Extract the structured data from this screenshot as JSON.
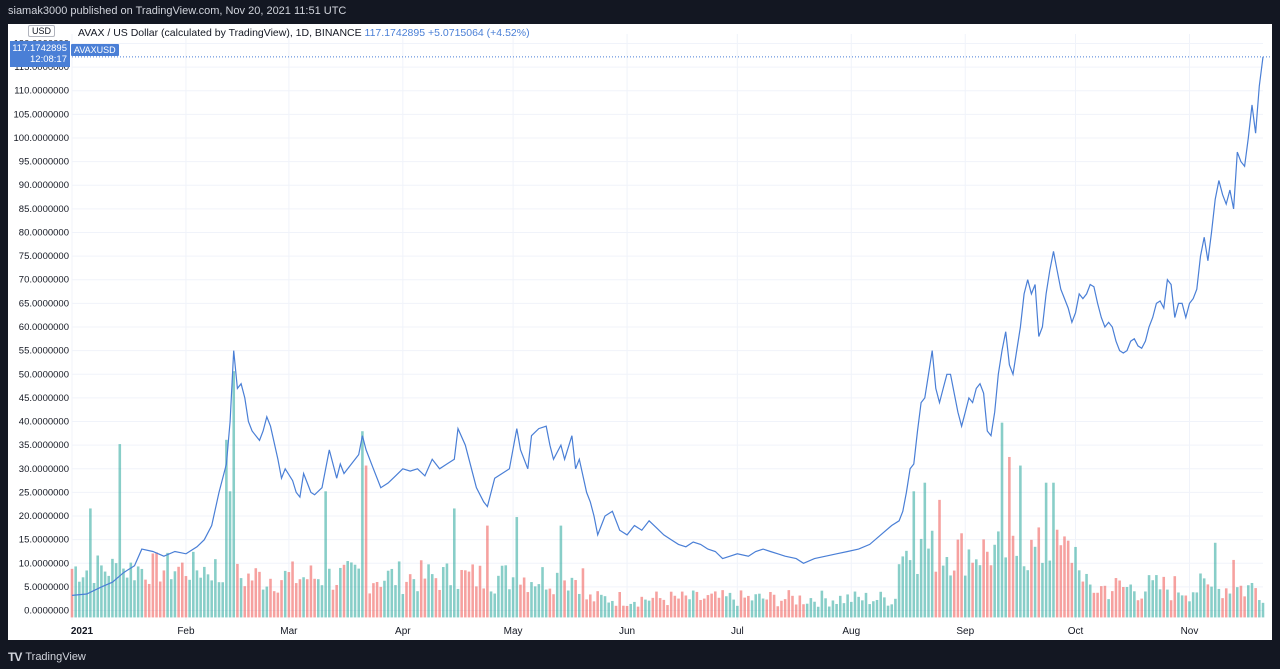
{
  "header": {
    "published": "siamak3000 published on TradingView.com, Nov 20, 2021 11:51 UTC"
  },
  "legend": {
    "title": "AVAX / US Dollar (calculated by TradingView), 1D, BINANCE",
    "last": "117.1742895",
    "change": "+5.0715064 (+4.52%)"
  },
  "series_tag": "AVAXUSD",
  "price_badge": {
    "price": "117.1742895",
    "countdown": "12:08:17"
  },
  "currency": "USD",
  "footer": {
    "brand": "TradingView"
  },
  "colors": {
    "line": "#4a7fd6",
    "vol_up": "#26a69a",
    "vol_down": "#ef5350",
    "grid": "#f0f3fa"
  },
  "chart_data": {
    "type": "line",
    "title": "AVAX / US Dollar (calculated by TradingView), 1D, BINANCE",
    "ylim": [
      -2,
      122
    ],
    "y_ticks": [
      "0.0000000",
      "5.0000000",
      "10.0000000",
      "15.0000000",
      "20.0000000",
      "25.0000000",
      "30.0000000",
      "35.0000000",
      "40.0000000",
      "45.0000000",
      "50.0000000",
      "55.0000000",
      "60.0000000",
      "65.0000000",
      "70.0000000",
      "75.0000000",
      "80.0000000",
      "85.0000000",
      "90.0000000",
      "95.0000000",
      "100.0000000",
      "105.0000000",
      "110.0000000",
      "115.0000000",
      "120.0000000"
    ],
    "x_ticks": [
      {
        "label": "2021",
        "day": 0
      },
      {
        "label": "Feb",
        "day": 31
      },
      {
        "label": "Mar",
        "day": 59
      },
      {
        "label": "Apr",
        "day": 90
      },
      {
        "label": "May",
        "day": 120
      },
      {
        "label": "Jun",
        "day": 151
      },
      {
        "label": "Jul",
        "day": 181
      },
      {
        "label": "Aug",
        "day": 212
      },
      {
        "label": "Sep",
        "day": 243
      },
      {
        "label": "Oct",
        "day": 273
      },
      {
        "label": "Nov",
        "day": 304
      }
    ],
    "x_range": [
      0,
      324
    ],
    "anchors": [
      [
        0,
        3.2
      ],
      [
        4,
        3.5
      ],
      [
        8,
        5
      ],
      [
        11,
        6
      ],
      [
        14,
        8
      ],
      [
        17,
        9.5
      ],
      [
        19,
        13
      ],
      [
        22,
        12.5
      ],
      [
        25,
        11.5
      ],
      [
        28,
        12.5
      ],
      [
        31,
        12
      ],
      [
        34,
        13.5
      ],
      [
        36,
        15
      ],
      [
        38,
        18
      ],
      [
        40,
        25
      ],
      [
        42,
        31
      ],
      [
        43,
        40
      ],
      [
        44,
        55
      ],
      [
        45,
        47
      ],
      [
        46,
        48
      ],
      [
        47,
        45
      ],
      [
        48,
        40
      ],
      [
        49,
        38
      ],
      [
        51,
        36
      ],
      [
        52,
        38
      ],
      [
        53,
        41
      ],
      [
        54,
        39
      ],
      [
        56,
        32
      ],
      [
        57,
        28
      ],
      [
        58,
        30
      ],
      [
        60,
        27.5
      ],
      [
        61,
        25
      ],
      [
        62,
        24
      ],
      [
        63,
        29
      ],
      [
        64,
        27
      ],
      [
        65,
        25
      ],
      [
        66,
        24.5
      ],
      [
        68,
        26
      ],
      [
        70,
        34
      ],
      [
        72,
        28
      ],
      [
        73,
        31
      ],
      [
        74,
        29
      ],
      [
        76,
        31
      ],
      [
        78,
        33
      ],
      [
        79,
        37
      ],
      [
        80,
        34
      ],
      [
        82,
        30
      ],
      [
        84,
        26
      ],
      [
        86,
        27
      ],
      [
        88,
        28.5
      ],
      [
        90,
        30
      ],
      [
        92,
        29.5
      ],
      [
        94,
        30
      ],
      [
        96,
        28.5
      ],
      [
        98,
        32
      ],
      [
        100,
        30
      ],
      [
        102,
        31
      ],
      [
        104,
        32
      ],
      [
        105,
        38.5
      ],
      [
        107,
        35
      ],
      [
        108,
        32
      ],
      [
        110,
        26
      ],
      [
        112,
        23
      ],
      [
        113,
        22
      ],
      [
        115,
        28
      ],
      [
        117,
        29
      ],
      [
        119,
        30
      ],
      [
        121,
        38.5
      ],
      [
        122,
        34
      ],
      [
        124,
        30
      ],
      [
        125,
        37
      ],
      [
        127,
        38.5
      ],
      [
        129,
        39
      ],
      [
        130,
        35
      ],
      [
        131,
        32
      ],
      [
        133,
        35
      ],
      [
        134,
        32
      ],
      [
        136,
        37
      ],
      [
        137,
        30
      ],
      [
        138,
        32
      ],
      [
        140,
        25
      ],
      [
        141,
        23
      ],
      [
        142,
        20
      ],
      [
        143,
        16
      ],
      [
        145,
        20
      ],
      [
        147,
        21
      ],
      [
        149,
        17
      ],
      [
        151,
        16
      ],
      [
        153,
        18
      ],
      [
        155,
        17
      ],
      [
        157,
        19
      ],
      [
        159,
        17.5
      ],
      [
        161,
        16
      ],
      [
        163,
        15
      ],
      [
        165,
        14
      ],
      [
        167,
        13.5
      ],
      [
        169,
        14.5
      ],
      [
        171,
        14
      ],
      [
        173,
        13
      ],
      [
        175,
        12.5
      ],
      [
        177,
        11
      ],
      [
        179,
        11.5
      ],
      [
        181,
        12
      ],
      [
        184,
        11.5
      ],
      [
        186,
        12.5
      ],
      [
        188,
        13
      ],
      [
        190,
        12.5
      ],
      [
        192,
        12
      ],
      [
        194,
        11.5
      ],
      [
        197,
        11
      ],
      [
        199,
        10
      ],
      [
        202,
        11
      ],
      [
        205,
        11.5
      ],
      [
        208,
        12
      ],
      [
        211,
        12.5
      ],
      [
        214,
        13
      ],
      [
        217,
        14
      ],
      [
        220,
        16
      ],
      [
        223,
        18
      ],
      [
        225,
        19
      ],
      [
        226,
        21
      ],
      [
        227,
        25
      ],
      [
        228,
        30
      ],
      [
        229,
        31
      ],
      [
        230,
        38
      ],
      [
        231,
        44
      ],
      [
        232,
        45
      ],
      [
        233,
        50
      ],
      [
        234,
        55
      ],
      [
        235,
        47
      ],
      [
        236,
        44
      ],
      [
        237,
        47
      ],
      [
        238,
        50
      ],
      [
        239,
        50
      ],
      [
        240,
        46
      ],
      [
        241,
        42
      ],
      [
        242,
        39
      ],
      [
        243,
        42
      ],
      [
        244,
        45
      ],
      [
        245,
        44
      ],
      [
        246,
        47
      ],
      [
        247,
        48
      ],
      [
        248,
        46
      ],
      [
        249,
        38
      ],
      [
        250,
        37
      ],
      [
        251,
        42
      ],
      [
        252,
        50
      ],
      [
        253,
        55
      ],
      [
        254,
        59
      ],
      [
        255,
        52
      ],
      [
        256,
        50
      ],
      [
        257,
        55
      ],
      [
        258,
        60
      ],
      [
        259,
        67
      ],
      [
        260,
        70
      ],
      [
        261,
        67
      ],
      [
        262,
        69
      ],
      [
        263,
        58
      ],
      [
        264,
        60
      ],
      [
        265,
        67
      ],
      [
        266,
        72
      ],
      [
        267,
        76
      ],
      [
        268,
        72
      ],
      [
        269,
        68
      ],
      [
        270,
        66
      ],
      [
        271,
        64
      ],
      [
        272,
        61
      ],
      [
        273,
        63
      ],
      [
        274,
        67
      ],
      [
        275,
        66
      ],
      [
        276,
        67
      ],
      [
        277,
        69
      ],
      [
        278,
        68.5
      ],
      [
        279,
        65
      ],
      [
        280,
        62
      ],
      [
        281,
        60
      ],
      [
        282,
        61
      ],
      [
        283,
        60
      ],
      [
        284,
        57
      ],
      [
        285,
        55
      ],
      [
        286,
        54.5
      ],
      [
        287,
        55
      ],
      [
        288,
        57
      ],
      [
        289,
        57.5
      ],
      [
        290,
        56
      ],
      [
        291,
        55.5
      ],
      [
        292,
        57
      ],
      [
        293,
        60
      ],
      [
        294,
        62
      ],
      [
        295,
        65
      ],
      [
        296,
        65.5
      ],
      [
        297,
        64
      ],
      [
        298,
        70
      ],
      [
        299,
        69
      ],
      [
        300,
        62
      ],
      [
        301,
        65
      ],
      [
        302,
        65
      ],
      [
        303,
        62
      ],
      [
        304,
        65
      ],
      [
        305,
        66
      ],
      [
        306,
        68
      ],
      [
        307,
        75
      ],
      [
        308,
        79
      ],
      [
        309,
        74
      ],
      [
        310,
        80
      ],
      [
        311,
        87
      ],
      [
        312,
        91
      ],
      [
        313,
        88
      ],
      [
        314,
        86
      ],
      [
        315,
        89
      ],
      [
        316,
        85
      ],
      [
        317,
        97
      ],
      [
        318,
        95
      ],
      [
        319,
        94
      ],
      [
        320,
        100
      ],
      [
        321,
        107
      ],
      [
        322,
        101
      ],
      [
        323,
        111
      ],
      [
        324,
        117.17
      ]
    ],
    "volume": {
      "ylim": [
        -1,
        30
      ],
      "peaks": [
        {
          "day": 5,
          "v": 12
        },
        {
          "day": 13,
          "v": 19.5
        },
        {
          "day": 44,
          "v": 28
        },
        {
          "day": 42,
          "v": 20
        },
        {
          "day": 43,
          "v": 14
        },
        {
          "day": 69,
          "v": 14
        },
        {
          "day": 79,
          "v": 21
        },
        {
          "day": 80,
          "v": 17
        },
        {
          "day": 104,
          "v": 12
        },
        {
          "day": 113,
          "v": 10
        },
        {
          "day": 121,
          "v": 11
        },
        {
          "day": 133,
          "v": 10
        },
        {
          "day": 229,
          "v": 14
        },
        {
          "day": 232,
          "v": 15
        },
        {
          "day": 236,
          "v": 13
        },
        {
          "day": 253,
          "v": 22
        },
        {
          "day": 255,
          "v": 18
        },
        {
          "day": 258,
          "v": 17
        },
        {
          "day": 265,
          "v": 15
        },
        {
          "day": 267,
          "v": 15
        },
        {
          "day": 311,
          "v": 8
        },
        {
          "day": 316,
          "v": 6
        }
      ]
    }
  }
}
